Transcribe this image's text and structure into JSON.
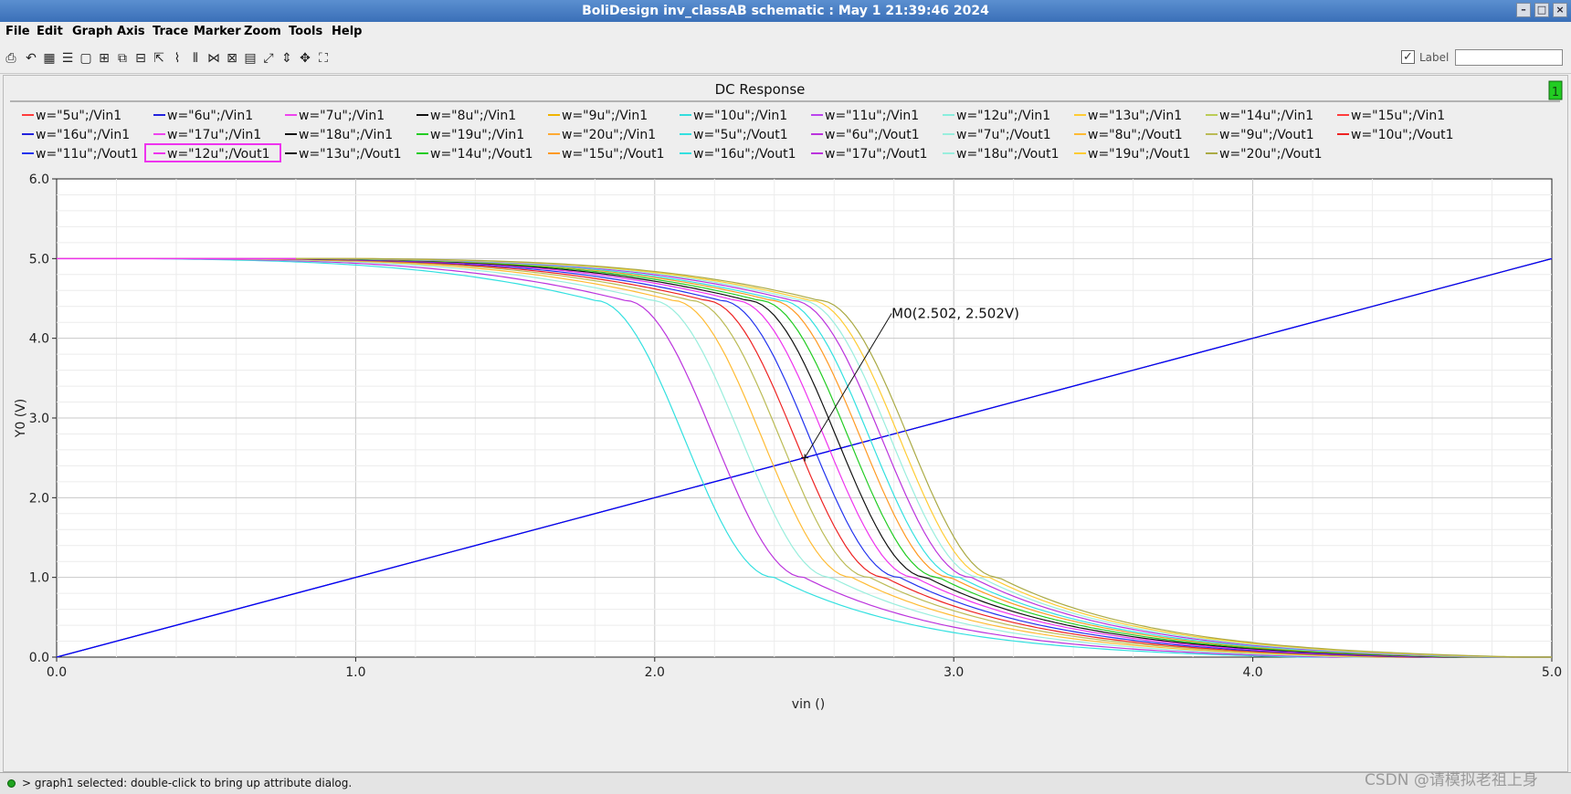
{
  "window": {
    "title": "BoliDesign inv_classAB schematic : May  1 21:39:46 2024",
    "controls": [
      "minimize",
      "maximize",
      "close"
    ]
  },
  "menu": [
    "File",
    "Edit",
    "Graph",
    "Axis",
    "Trace",
    "Marker",
    "Zoom",
    "Tools",
    "Help"
  ],
  "toolbar": {
    "icons": [
      "print-icon",
      "undo-icon",
      "grid-icon",
      "list-icon",
      "blank-icon",
      "split-icon",
      "overlay-icon",
      "stack-icon",
      "detach-icon",
      "axis-icon",
      "bars-icon",
      "mark-icon",
      "unmark-icon",
      "calc-icon",
      "fit-x-icon",
      "fit-y-icon",
      "pan-icon",
      "fit-all-icon"
    ],
    "label_checkbox_checked": true,
    "label_text": "Label",
    "label_input_value": ""
  },
  "status": {
    "message": "> graph1 selected: double-click to bring up attribute dialog."
  },
  "watermark": "CSDN @请模拟老祖上身",
  "chart_data": {
    "type": "line",
    "title": "DC Response",
    "subwindow_badge": "1",
    "xlabel": "vin ()",
    "ylabel": "Y0 (V)",
    "xlim": [
      0,
      5
    ],
    "ylim": [
      0,
      6
    ],
    "xticks": [
      "0.0",
      "1.0",
      "2.0",
      "3.0",
      "4.0",
      "5.0"
    ],
    "yticks": [
      "0.0",
      "1.0",
      "2.0",
      "3.0",
      "4.0",
      "5.0",
      "6.0"
    ],
    "grid": true,
    "legend_placement": "top",
    "highlighted_legend": "w=\"12u\";/Vout1",
    "vtc_shape": {
      "x": [
        0,
        0.8,
        1.0,
        1.2,
        1.4,
        1.6,
        1.8,
        1.9,
        2.0,
        2.1,
        2.2,
        2.3,
        2.4,
        2.5,
        2.6,
        2.7,
        2.8,
        2.9,
        3.0,
        3.2,
        3.4,
        3.6,
        3.8,
        4.0,
        5.0
      ],
      "ref_midpoint": 2.55
    },
    "vin_color": "#0000ff",
    "series": [
      {
        "name": "w=\"5u\";/Vin1",
        "color": "#ff3b3b",
        "kind": "vin"
      },
      {
        "name": "w=\"6u\";/Vin1",
        "color": "#2222dd",
        "kind": "vin"
      },
      {
        "name": "w=\"7u\";/Vin1",
        "color": "#ee44ee",
        "kind": "vin"
      },
      {
        "name": "w=\"8u\";/Vin1",
        "color": "#111111",
        "kind": "vin"
      },
      {
        "name": "w=\"9u\";/Vin1",
        "color": "#f0b400",
        "kind": "vin"
      },
      {
        "name": "w=\"10u\";/Vin1",
        "color": "#33dddd",
        "kind": "vin"
      },
      {
        "name": "w=\"11u\";/Vin1",
        "color": "#bb44ee",
        "kind": "vin"
      },
      {
        "name": "w=\"12u\";/Vin1",
        "color": "#88eedd",
        "kind": "vin"
      },
      {
        "name": "w=\"13u\";/Vin1",
        "color": "#ffcc33",
        "kind": "vin"
      },
      {
        "name": "w=\"14u\";/Vin1",
        "color": "#bbcc55",
        "kind": "vin"
      },
      {
        "name": "w=\"15u\";/Vin1",
        "color": "#ff3b3b",
        "kind": "vin"
      },
      {
        "name": "w=\"16u\";/Vin1",
        "color": "#2222dd",
        "kind": "vin"
      },
      {
        "name": "w=\"17u\";/Vin1",
        "color": "#ee44ee",
        "kind": "vin"
      },
      {
        "name": "w=\"18u\";/Vin1",
        "color": "#111111",
        "kind": "vin"
      },
      {
        "name": "w=\"19u\";/Vin1",
        "color": "#22cc22",
        "kind": "vin"
      },
      {
        "name": "w=\"20u\";/Vin1",
        "color": "#ffaa33",
        "kind": "vin"
      },
      {
        "name": "w=\"5u\";/Vout1",
        "color": "#33e0e0",
        "kind": "vout",
        "vm": 2.05
      },
      {
        "name": "w=\"6u\";/Vout1",
        "color": "#bb33dd",
        "kind": "vout",
        "vm": 2.15
      },
      {
        "name": "w=\"7u\";/Vout1",
        "color": "#99eedd",
        "kind": "vout",
        "vm": 2.24
      },
      {
        "name": "w=\"8u\";/Vout1",
        "color": "#ffbb33",
        "kind": "vout",
        "vm": 2.31
      },
      {
        "name": "w=\"9u\";/Vout1",
        "color": "#bbbb55",
        "kind": "vout",
        "vm": 2.37
      },
      {
        "name": "w=\"10u\";/Vout1",
        "color": "#ee2222",
        "kind": "vout",
        "vm": 2.42
      },
      {
        "name": "w=\"11u\";/Vout1",
        "color": "#2233ee",
        "kind": "vout",
        "vm": 2.47
      },
      {
        "name": "w=\"12u\";/Vout1",
        "color": "#ee33ee",
        "kind": "vout",
        "vm": 2.52
      },
      {
        "name": "w=\"13u\";/Vout1",
        "color": "#111111",
        "kind": "vout",
        "vm": 2.56
      },
      {
        "name": "w=\"14u\";/Vout1",
        "color": "#22cc22",
        "kind": "vout",
        "vm": 2.6
      },
      {
        "name": "w=\"15u\";/Vout1",
        "color": "#ff9922",
        "kind": "vout",
        "vm": 2.64
      },
      {
        "name": "w=\"16u\";/Vout1",
        "color": "#33e0e0",
        "kind": "vout",
        "vm": 2.67
      },
      {
        "name": "w=\"17u\";/Vout1",
        "color": "#bb33dd",
        "kind": "vout",
        "vm": 2.71
      },
      {
        "name": "w=\"18u\";/Vout1",
        "color": "#99eedd",
        "kind": "vout",
        "vm": 2.74
      },
      {
        "name": "w=\"19u\";/Vout1",
        "color": "#ffcc33",
        "kind": "vout",
        "vm": 2.77
      },
      {
        "name": "w=\"20u\";/Vout1",
        "color": "#aaaa44",
        "kind": "vout",
        "vm": 2.8
      }
    ],
    "annotations": [
      {
        "label": "M0(2.502, 2.502V)",
        "x": 2.502,
        "y": 2.502
      }
    ]
  }
}
